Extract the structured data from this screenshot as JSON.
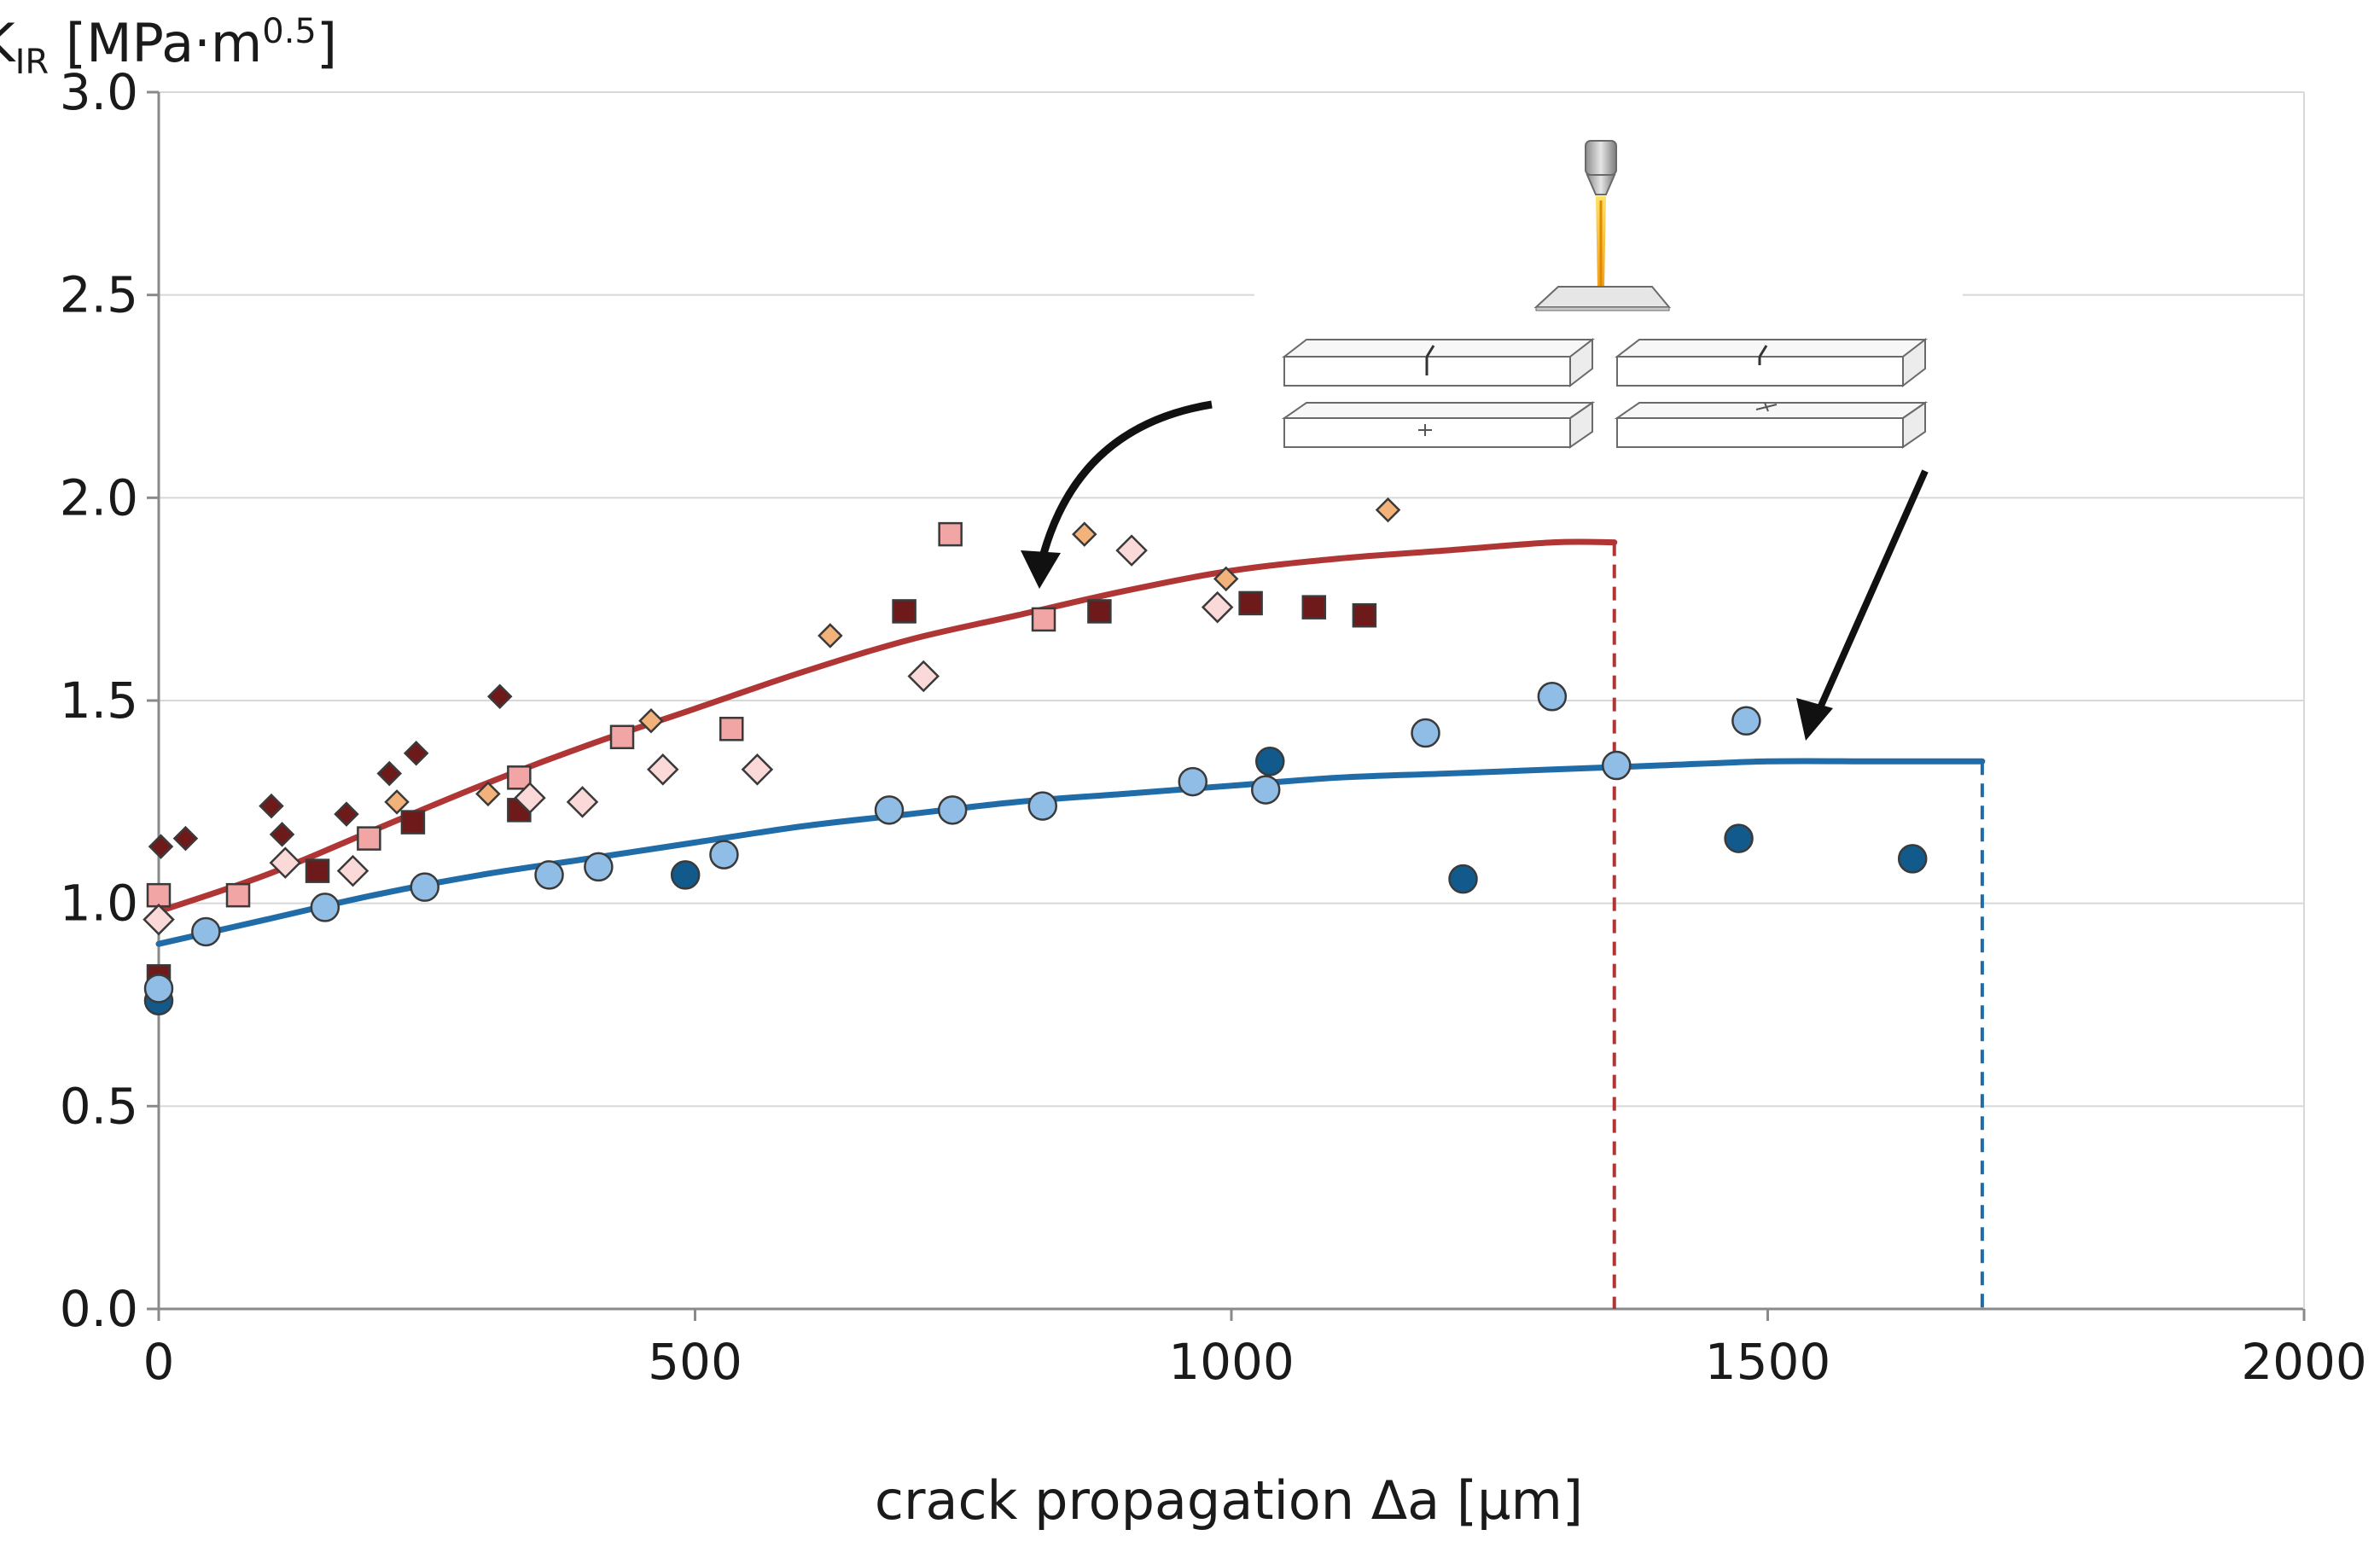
{
  "chart_data": {
    "type": "scatter",
    "title": "",
    "xlabel": "crack propagation Δa [µm]",
    "ylabel": {
      "symbol": "K",
      "subscript": "IR",
      "unit_open": " [MPa·m",
      "unit_exponent": "0.5",
      "unit_close": "]"
    },
    "xlim": [
      0,
      2000
    ],
    "ylim": [
      0.0,
      3.0
    ],
    "x_ticks": [
      "0",
      "500",
      "1000",
      "1500",
      "2000"
    ],
    "x_tick_values": [
      0,
      500,
      1000,
      1500,
      2000
    ],
    "y_ticks": [
      "0.0",
      "0.5",
      "1.0",
      "1.5",
      "2.0",
      "2.5",
      "3.0"
    ],
    "y_tick_values": [
      0.0,
      0.5,
      1.0,
      1.5,
      2.0,
      2.5,
      3.0
    ],
    "grid": "horizontal",
    "colors": {
      "red_fit": "#b03535",
      "blue_fit": "#1f6ca8",
      "dark_red": "#6e1a1a",
      "pink": "#f2a5a5",
      "light_pink": "#fbd9d9",
      "orange": "#f3b27a",
      "dark_blue": "#135a8c",
      "light_blue": "#8fbde6",
      "grid": "#d8d8d8"
    },
    "series": [
      {
        "name": "dark-red-diamonds",
        "marker": "diamond",
        "color": "#6e1a1a",
        "points": [
          [
            2,
            1.14
          ],
          [
            25,
            1.16
          ],
          [
            105,
            1.24
          ],
          [
            115,
            1.17
          ],
          [
            175,
            1.22
          ],
          [
            215,
            1.32
          ],
          [
            240,
            1.37
          ],
          [
            318,
            1.51
          ]
        ]
      },
      {
        "name": "dark-red-squares",
        "marker": "square",
        "color": "#6e1a1a",
        "points": [
          [
            0,
            0.82
          ],
          [
            148,
            1.08
          ],
          [
            237,
            1.2
          ],
          [
            336,
            1.23
          ],
          [
            695,
            1.72
          ],
          [
            877,
            1.72
          ],
          [
            1018,
            1.74
          ],
          [
            1077,
            1.73
          ],
          [
            1124,
            1.71
          ]
        ]
      },
      {
        "name": "pink-squares",
        "marker": "square",
        "color": "#f2a5a5",
        "points": [
          [
            0,
            1.02
          ],
          [
            74,
            1.02
          ],
          [
            196,
            1.16
          ],
          [
            336,
            1.31
          ],
          [
            432,
            1.41
          ],
          [
            534,
            1.43
          ],
          [
            738,
            1.91
          ],
          [
            825,
            1.7
          ]
        ]
      },
      {
        "name": "light-pink-diamonds",
        "marker": "diamond",
        "color": "#fbd9d9",
        "points": [
          [
            0,
            0.96
          ],
          [
            118,
            1.1
          ],
          [
            181,
            1.08
          ],
          [
            346,
            1.26
          ],
          [
            395,
            1.25
          ],
          [
            470,
            1.33
          ],
          [
            558,
            1.33
          ],
          [
            713,
            1.56
          ],
          [
            907,
            1.87
          ],
          [
            987,
            1.73
          ]
        ]
      },
      {
        "name": "orange-diamonds",
        "marker": "diamond",
        "color": "#f3b27a",
        "points": [
          [
            222,
            1.25
          ],
          [
            307,
            1.27
          ],
          [
            459,
            1.45
          ],
          [
            626,
            1.66
          ],
          [
            863,
            1.91
          ],
          [
            995,
            1.8
          ],
          [
            1146,
            1.97
          ]
        ]
      },
      {
        "name": "dark-blue-circles",
        "marker": "circle",
        "color": "#135a8c",
        "points": [
          [
            0,
            0.76
          ],
          [
            491,
            1.07
          ],
          [
            1036,
            1.35
          ],
          [
            1216,
            1.06
          ],
          [
            1473,
            1.16
          ],
          [
            1635,
            1.11
          ]
        ]
      },
      {
        "name": "light-blue-circles",
        "marker": "circle",
        "color": "#8fbde6",
        "points": [
          [
            0,
            0.79
          ],
          [
            44,
            0.93
          ],
          [
            155,
            0.99
          ],
          [
            248,
            1.04
          ],
          [
            364,
            1.07
          ],
          [
            410,
            1.09
          ],
          [
            527,
            1.12
          ],
          [
            681,
            1.23
          ],
          [
            740,
            1.23
          ],
          [
            824,
            1.24
          ],
          [
            964,
            1.3
          ],
          [
            1032,
            1.28
          ],
          [
            1181,
            1.42
          ],
          [
            1299,
            1.51
          ],
          [
            1359,
            1.34
          ],
          [
            1480,
            1.45
          ]
        ]
      }
    ],
    "fit_curves": [
      {
        "name": "red-fit-curve",
        "color": "#b03535",
        "end_x": 1357,
        "points": [
          [
            0,
            0.98
          ],
          [
            100,
            1.07
          ],
          [
            200,
            1.18
          ],
          [
            300,
            1.29
          ],
          [
            400,
            1.39
          ],
          [
            500,
            1.48
          ],
          [
            600,
            1.57
          ],
          [
            700,
            1.65
          ],
          [
            800,
            1.71
          ],
          [
            900,
            1.77
          ],
          [
            1000,
            1.82
          ],
          [
            1100,
            1.85
          ],
          [
            1200,
            1.87
          ],
          [
            1300,
            1.89
          ],
          [
            1357,
            1.89
          ]
        ]
      },
      {
        "name": "blue-fit-curve",
        "color": "#1f6ca8",
        "end_x": 1700,
        "points": [
          [
            0,
            0.9
          ],
          [
            100,
            0.96
          ],
          [
            200,
            1.02
          ],
          [
            300,
            1.07
          ],
          [
            400,
            1.11
          ],
          [
            500,
            1.15
          ],
          [
            600,
            1.19
          ],
          [
            700,
            1.22
          ],
          [
            800,
            1.25
          ],
          [
            900,
            1.27
          ],
          [
            1000,
            1.29
          ],
          [
            1100,
            1.31
          ],
          [
            1200,
            1.32
          ],
          [
            1300,
            1.33
          ],
          [
            1400,
            1.34
          ],
          [
            1500,
            1.35
          ],
          [
            1600,
            1.35
          ],
          [
            1700,
            1.35
          ]
        ]
      }
    ]
  }
}
